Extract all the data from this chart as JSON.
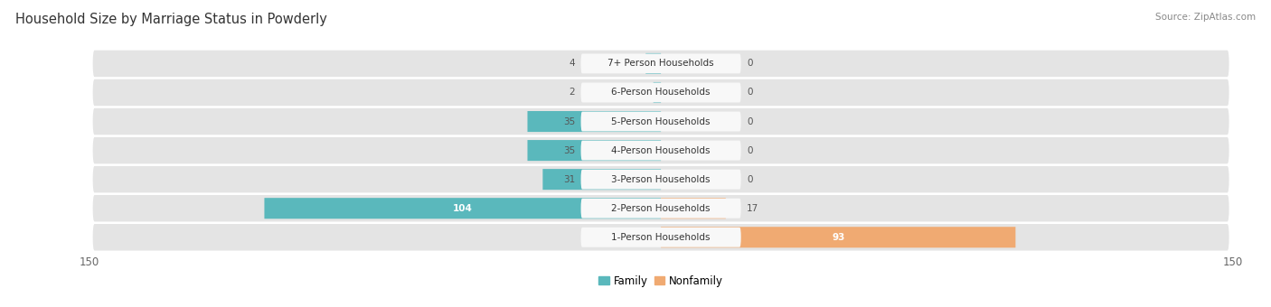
{
  "title": "Household Size by Marriage Status in Powderly",
  "source": "Source: ZipAtlas.com",
  "categories": [
    "7+ Person Households",
    "6-Person Households",
    "5-Person Households",
    "4-Person Households",
    "3-Person Households",
    "2-Person Households",
    "1-Person Households"
  ],
  "family_values": [
    4,
    2,
    35,
    35,
    31,
    104,
    0
  ],
  "nonfamily_values": [
    0,
    0,
    0,
    0,
    0,
    17,
    93
  ],
  "family_color": "#5ab8bc",
  "nonfamily_color": "#f0aa72",
  "xlim": 150,
  "bar_height": 0.72,
  "row_bg_color": "#e4e4e4",
  "label_bg_color": "#f8f8f8",
  "title_fontsize": 10.5,
  "source_fontsize": 7.5,
  "tick_fontsize": 8.5,
  "label_fontsize": 7.5,
  "value_fontsize": 7.5
}
